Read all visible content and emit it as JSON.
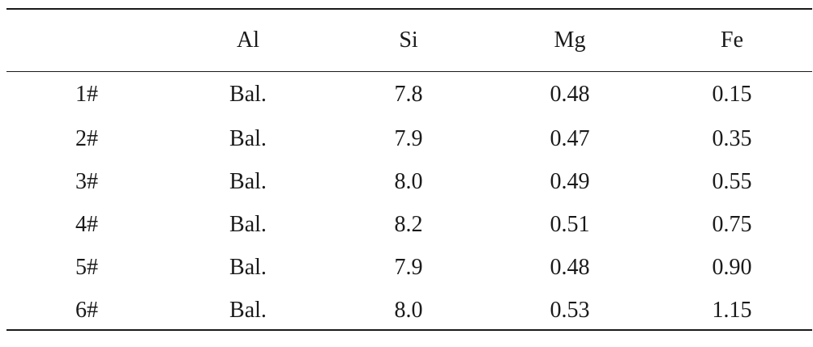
{
  "table": {
    "headers": [
      "",
      "Al",
      "Si",
      "Mg",
      "Fe"
    ],
    "rows": [
      [
        "1#",
        "Bal.",
        "7.8",
        "0.48",
        "0.15"
      ],
      [
        "2#",
        "Bal.",
        "7.9",
        "0.47",
        "0.35"
      ],
      [
        "3#",
        "Bal.",
        "8.0",
        "0.49",
        "0.55"
      ],
      [
        "4#",
        "Bal.",
        "8.2",
        "0.51",
        "0.75"
      ],
      [
        "5#",
        "Bal.",
        "7.9",
        "0.48",
        "0.90"
      ],
      [
        "6#",
        "Bal.",
        "8.0",
        "0.53",
        "1.15"
      ]
    ]
  }
}
